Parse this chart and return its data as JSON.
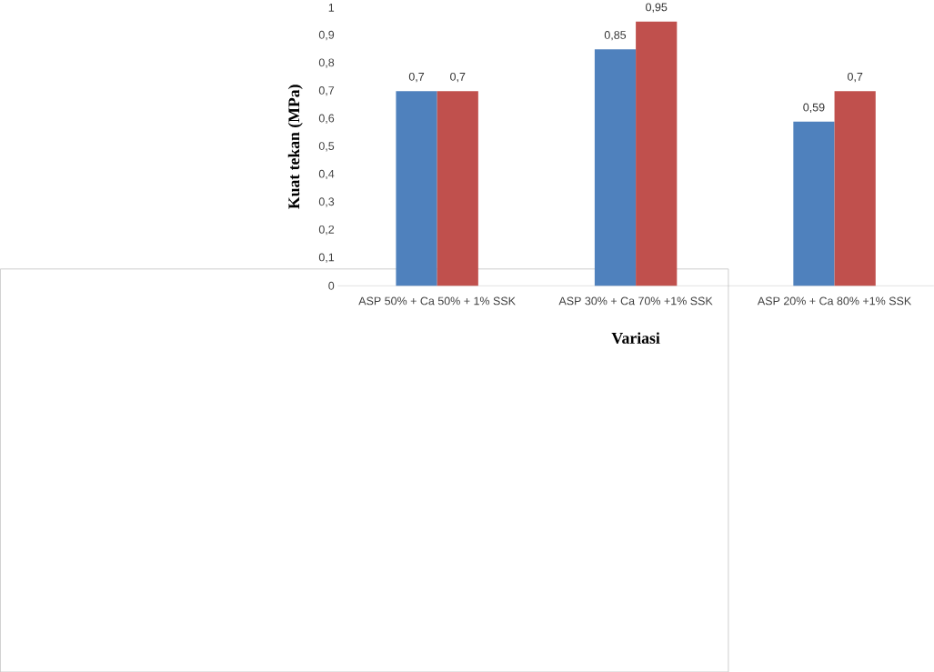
{
  "chart_data": {
    "type": "bar",
    "xlabel": "Variasi",
    "ylabel": "Kuat tekan (MPa)",
    "categories": [
      "ASP 50% + Ca 50% + 1% SSK",
      "ASP 30% + Ca 70% +1% SSK",
      "ASP 20% + Ca 80% +1% SSK"
    ],
    "series": [
      {
        "color": "#4f81bd",
        "values": [
          0.7,
          0.85,
          0.59
        ],
        "value_labels": [
          "0,7",
          "0,85",
          "0,59"
        ]
      },
      {
        "color": "#c0504d",
        "values": [
          0.7,
          0.95,
          0.7
        ],
        "value_labels": [
          "0,7",
          "0,95",
          "0,7"
        ]
      }
    ],
    "ylim": [
      0,
      1
    ],
    "yticks": [
      0,
      {
        "value": 0.1,
        "label": "0,1"
      },
      {
        "value": 0.2,
        "label": "0,2"
      },
      {
        "value": 0.3,
        "label": "0,3"
      },
      {
        "value": 0.4,
        "label": "0,4"
      },
      {
        "value": 0.5,
        "label": "0,5"
      },
      {
        "value": 0.6,
        "label": "0,6"
      },
      {
        "value": 0.7,
        "label": "0,7"
      },
      {
        "value": 0.8,
        "label": "0,8"
      },
      {
        "value": 0.9,
        "label": "0,9"
      },
      1
    ]
  }
}
